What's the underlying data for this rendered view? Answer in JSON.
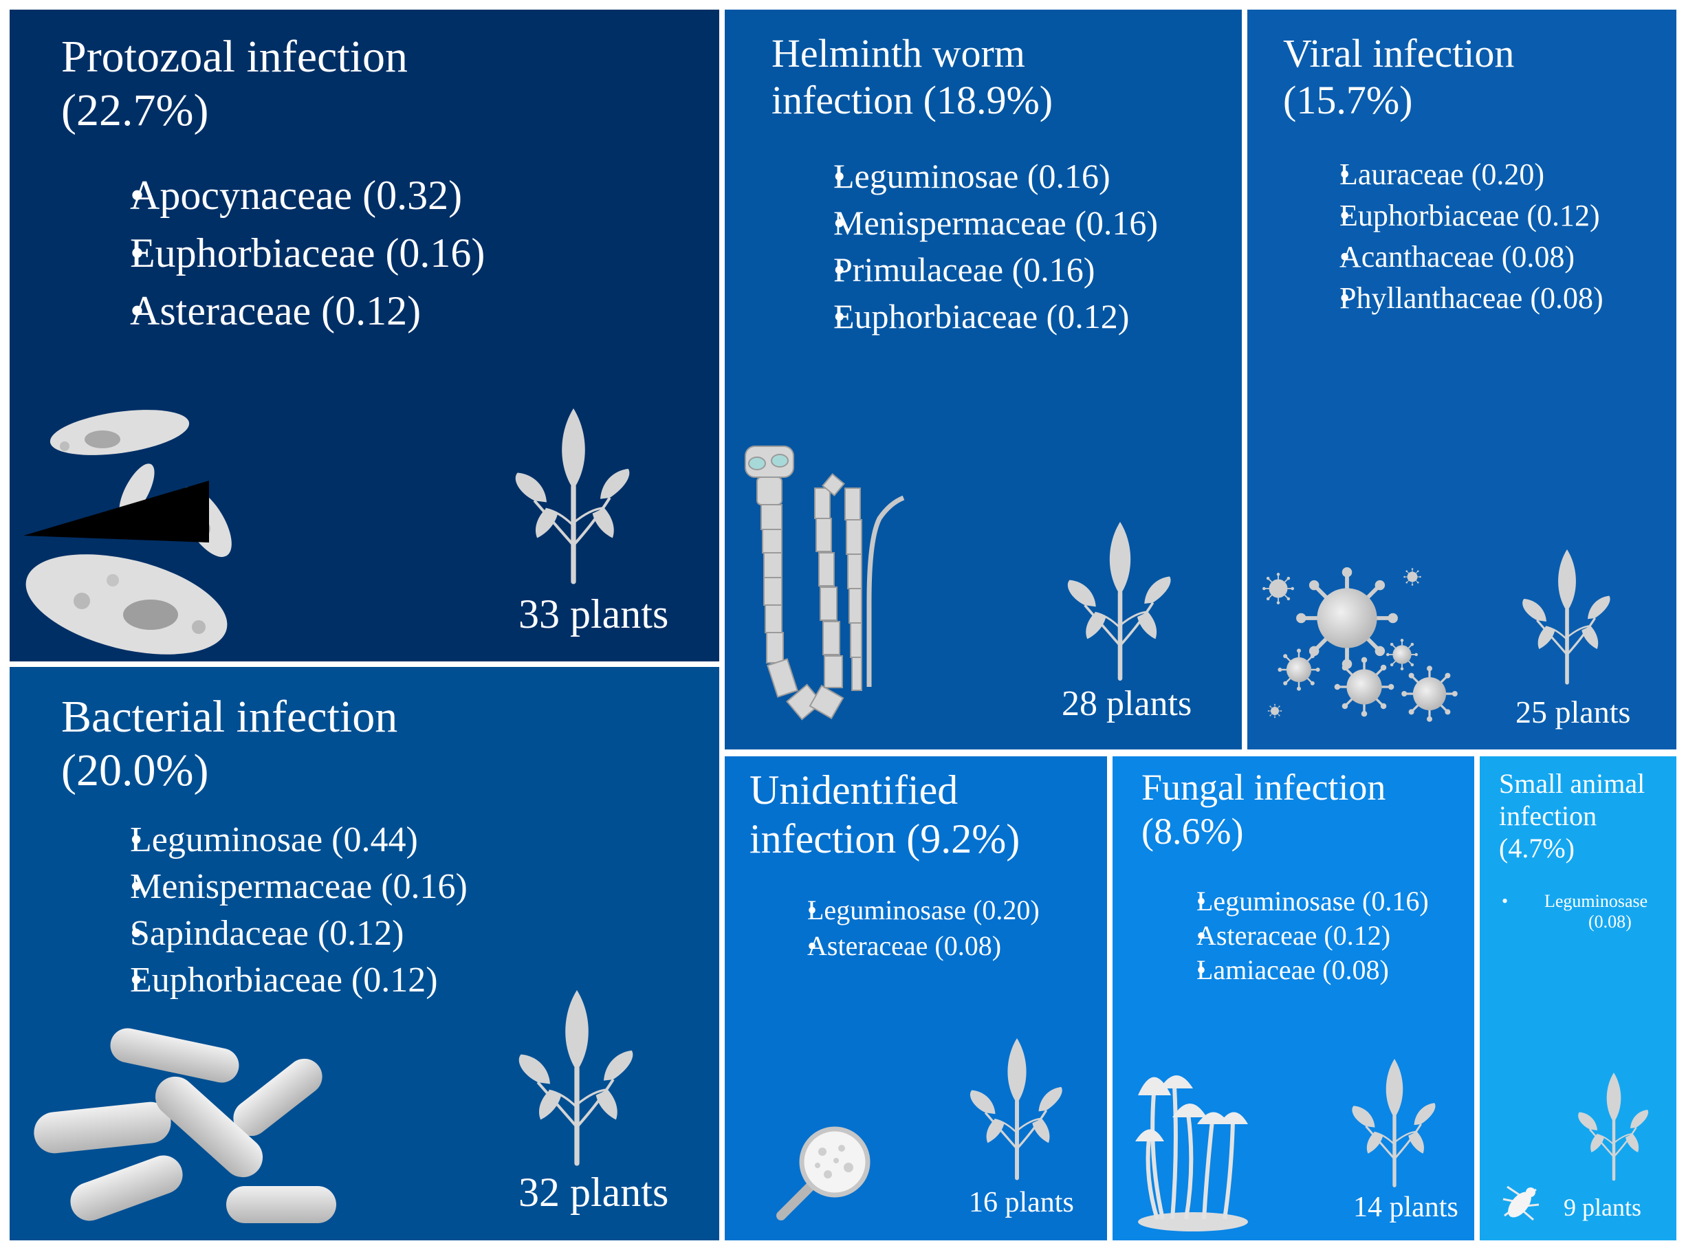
{
  "tiles": {
    "protozoal": {
      "title_line1": "Protozoal infection",
      "title_line2": "(22.7%)",
      "families": [
        "Apocynaceae (0.32)",
        "Euphorbiaceae (0.16)",
        "Asteraceae (0.12)"
      ],
      "count": "33 plants",
      "color": "#002f66",
      "icon": "protozoa-icon",
      "share_percent": 22.7
    },
    "bacterial": {
      "title_line1": "Bacterial infection",
      "title_line2": "(20.0%)",
      "families": [
        "Leguminosae (0.44)",
        "Menispermaceae (0.16)",
        "Sapindaceae (0.12)",
        "Euphorbiaceae (0.12)"
      ],
      "count": "32 plants",
      "color": "#004f93",
      "icon": "bacteria-icon",
      "share_percent": 20.0
    },
    "helminth": {
      "title_line1": "Helminth worm",
      "title_line2": "infection (18.9%)",
      "families": [
        "Leguminosae (0.16)",
        "Menispermaceae (0.16)",
        "Primulaceae (0.16)",
        "Euphorbiaceae (0.12)"
      ],
      "count": "28 plants",
      "color": "#0456a3",
      "icon": "tapeworm-icon",
      "share_percent": 18.9
    },
    "viral": {
      "title_line1": "Viral infection",
      "title_line2": "(15.7%)",
      "families": [
        "Lauraceae (0.20)",
        "Euphorbiaceae (0.12)",
        "Acanthaceae (0.08)",
        "Phyllanthaceae (0.08)"
      ],
      "count": "25 plants",
      "color": "#0a5dae",
      "icon": "virus-icon",
      "share_percent": 15.7
    },
    "unidentified": {
      "title_line1": "Unidentified",
      "title_line2": "infection (9.2%)",
      "families": [
        "Leguminosase (0.20)",
        "Asteraceae (0.08)"
      ],
      "count": "16 plants",
      "color": "#0471cf",
      "icon": "magnifier-icon",
      "share_percent": 9.2
    },
    "fungal": {
      "title_line1": "Fungal infection",
      "title_line2": "(8.6%)",
      "families": [
        "Leguminosase (0.16)",
        "Asteraceae (0.12)",
        "Lamiaceae (0.08)"
      ],
      "count": "14 plants",
      "color": "#0a86e6",
      "icon": "mushroom-icon",
      "share_percent": 8.6
    },
    "small_animal": {
      "title_line1": "Small animal",
      "title_line2": "infection",
      "title_line3": "(4.7%)",
      "families": [
        "Leguminosase",
        "(0.08)"
      ],
      "count": "9 plants",
      "color": "#14a7f0",
      "icon": "louse-icon",
      "share_percent": 4.7
    }
  },
  "plant_icon": "plant-sprout-icon",
  "plant_color": "#d4d4d4"
}
